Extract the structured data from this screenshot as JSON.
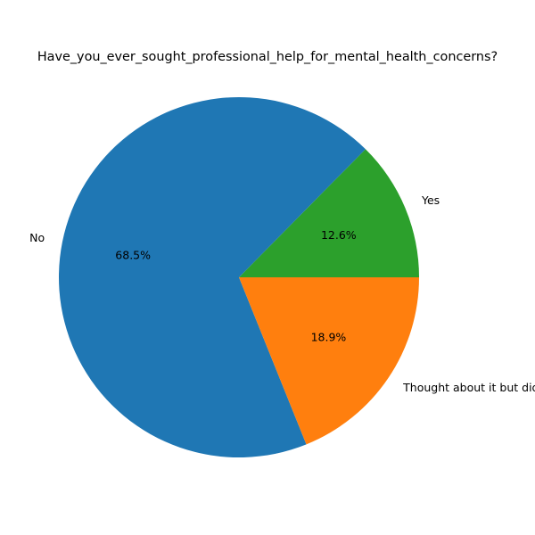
{
  "chart_data": {
    "type": "pie",
    "title": "Have_you_ever_sought_professional_help_for_mental_health_concerns?",
    "categories": [
      "Yes",
      "No",
      "Thought about it but didn't seek help"
    ],
    "values": [
      12.6,
      68.5,
      18.9
    ],
    "value_labels": [
      "12.6%",
      "68.5%",
      "18.9%"
    ],
    "colors": [
      "#2ca02c",
      "#1f77b4",
      "#ff7f0e"
    ],
    "start_angle_deg": 0,
    "direction": "counterclockwise",
    "legend": "none"
  }
}
